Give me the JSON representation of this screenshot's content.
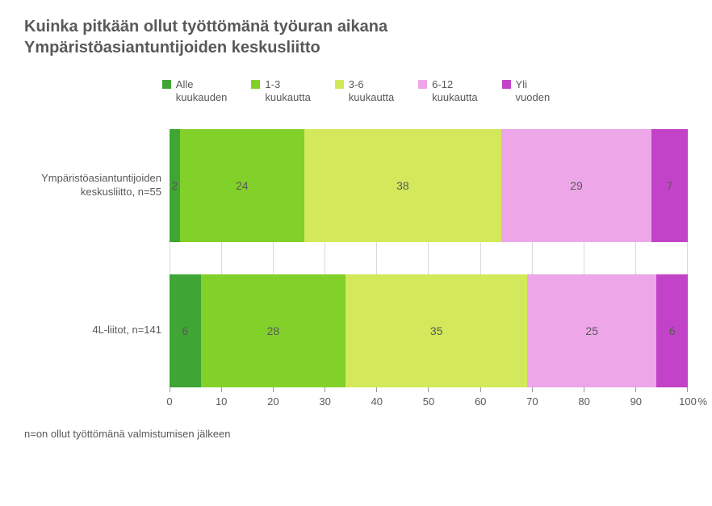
{
  "title_line1": "Kuinka pitkään ollut työttömänä työuran aikana",
  "title_line2": "Ympäristöasiantuntijoiden keskusliitto",
  "legend": [
    {
      "label": "Alle\nkuukauden",
      "color": "#3fa535"
    },
    {
      "label": "1-3\nkuukautta",
      "color": "#82d02a"
    },
    {
      "label": "3-6\nkuukautta",
      "color": "#d3e95b"
    },
    {
      "label": "6-12\nkuukautta",
      "color": "#eda6e8"
    },
    {
      "label": "Yli\nvuoden",
      "color": "#c243c8"
    }
  ],
  "chart": {
    "type": "stacked-bar-horizontal",
    "categories": [
      {
        "label": "Ympäristöasiantuntijoiden\nkeskusliitto, n=55",
        "values": [
          2,
          24,
          38,
          29,
          7
        ]
      },
      {
        "label": "4L-liitot, n=141",
        "values": [
          6,
          28,
          35,
          25,
          6
        ]
      }
    ],
    "xlim": [
      0,
      100
    ],
    "xtick_step": 10,
    "x_unit": "%",
    "grid_color": "#d9d9d9",
    "text_color": "#595959",
    "background": "#ffffff"
  },
  "footnote": "n=on ollut työttömänä valmistumisen jälkeen"
}
